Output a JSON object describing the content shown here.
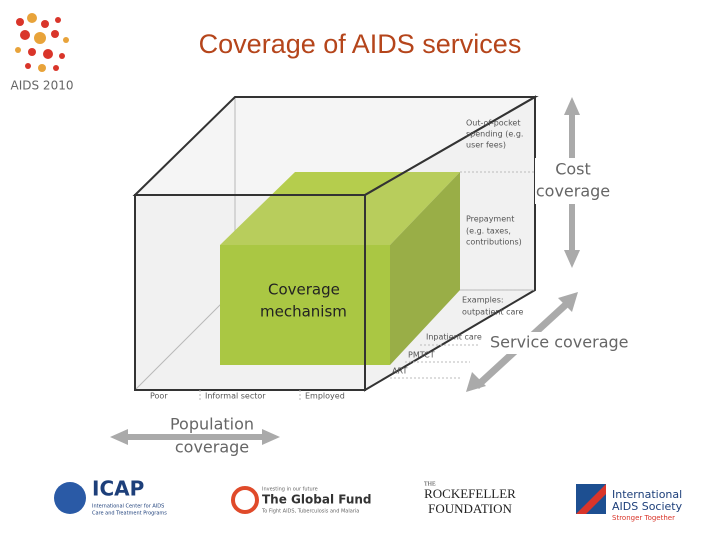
{
  "title": "Coverage of AIDS services",
  "logo": "AIDS 2010",
  "cube": {
    "cost_labels": [
      [
        "Out-of-pocket",
        "spending (e.g.",
        "user fees)"
      ],
      [
        "Prepayment",
        "(e.g. taxes,",
        "contributions)"
      ]
    ],
    "cost_axis": [
      "Cost",
      "coverage"
    ],
    "service_labels": [
      [
        "Examples:",
        "outpatient care"
      ],
      [
        "Inpatient care"
      ],
      [
        "PMTCT"
      ],
      [
        "ART"
      ]
    ],
    "service_axis": "Service coverage",
    "population_labels": [
      "Poor",
      "Informal sector",
      "Employed"
    ],
    "population_axis": [
      "Population",
      "coverage"
    ],
    "mechanism": [
      "Coverage",
      "mechanism"
    ]
  },
  "sponsors": {
    "icap": [
      "ICAP",
      "International Center for AIDS",
      "Care and Treatment Programs"
    ],
    "global_fund": [
      "Investing in our future",
      "The Global Fund",
      "To Fight AIDS, Tuberculosis and Malaria"
    ],
    "rockefeller": [
      "THE",
      "ROCKEFELLER",
      "FOUNDATION"
    ],
    "ias": [
      "International",
      "AIDS Society",
      "Stronger Together"
    ]
  }
}
